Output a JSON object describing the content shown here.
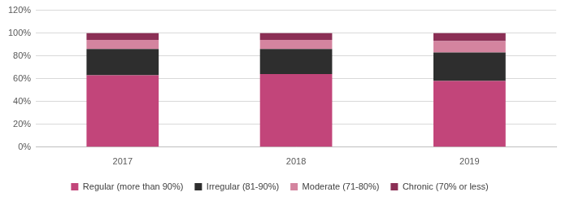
{
  "chart_data": {
    "type": "bar",
    "stacked": true,
    "grid": true,
    "legend": "bottom",
    "categories": [
      "2017",
      "2018",
      "2019"
    ],
    "series": [
      {
        "name": "Regular (more than 90%)",
        "color": "#c2457a",
        "values": [
          63,
          64,
          58
        ]
      },
      {
        "name": "Irregular (81-90%)",
        "color": "#2e2e2e",
        "values": [
          23,
          22,
          25
        ]
      },
      {
        "name": "Moderate (71-80%)",
        "color": "#d4849f",
        "values": [
          8,
          8,
          10
        ]
      },
      {
        "name": "Chronic (70% or less)",
        "color": "#8b2f55",
        "values": [
          6,
          6,
          7
        ]
      }
    ],
    "ylim": [
      0,
      120
    ],
    "yticks": [
      {
        "value": 0,
        "label": "0%"
      },
      {
        "value": 20,
        "label": "20%"
      },
      {
        "value": 40,
        "label": "40%"
      },
      {
        "value": 60,
        "label": "60%"
      },
      {
        "value": 80,
        "label": "80%"
      },
      {
        "value": 100,
        "label": "100%"
      },
      {
        "value": 120,
        "label": "120%"
      }
    ]
  }
}
